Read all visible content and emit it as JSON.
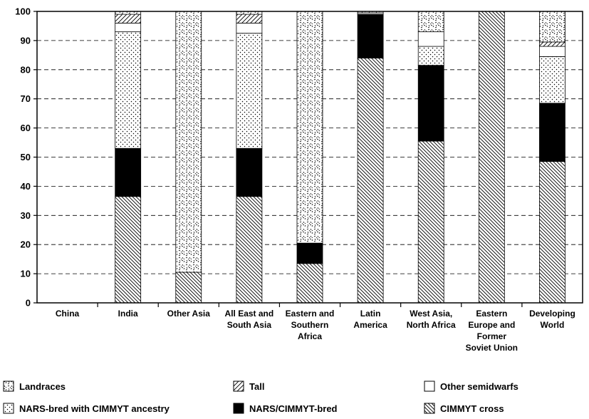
{
  "chart_data": {
    "type": "bar",
    "stacked": true,
    "title": "",
    "xlabel": "",
    "ylabel": "",
    "ylim": [
      0,
      100
    ],
    "yticks": [
      0,
      10,
      20,
      30,
      40,
      50,
      60,
      70,
      80,
      90,
      100
    ],
    "grid": "horizontal dashed",
    "legend_position": "bottom",
    "categories": [
      [
        "China"
      ],
      [
        "India"
      ],
      [
        "Other Asia"
      ],
      [
        "All East and",
        "South Asia"
      ],
      [
        "Eastern and",
        "Southern",
        "Africa"
      ],
      [
        "Latin",
        "America"
      ],
      [
        "West Asia,",
        "North Africa"
      ],
      [
        "Eastern",
        "Europe and",
        "Former",
        "Soviet Union"
      ],
      [
        "Developing",
        "World"
      ]
    ],
    "series": [
      {
        "name": "CIMMYT cross",
        "pattern": "back-diagonal-dense",
        "values": [
          0,
          36.5,
          10.5,
          36.5,
          13.5,
          84,
          55.5,
          100,
          48.5
        ]
      },
      {
        "name": "NARS/CIMMYT-bred",
        "pattern": "solid-black",
        "values": [
          0,
          16.5,
          0,
          16.5,
          7,
          15,
          26,
          0,
          20
        ]
      },
      {
        "name": "NARS-bred with CIMMYT ancestry",
        "pattern": "dots",
        "values": [
          0,
          40,
          0,
          39.5,
          0,
          0,
          6.5,
          0,
          16
        ]
      },
      {
        "name": "Other semidwarfs",
        "pattern": "white",
        "values": [
          0,
          3,
          0,
          3.5,
          0,
          0.5,
          5,
          0,
          3.5
        ]
      },
      {
        "name": "Tall",
        "pattern": "forward-diagonal",
        "values": [
          0,
          3,
          0,
          3,
          0,
          0,
          0,
          0,
          1.5
        ]
      },
      {
        "name": "Landraces",
        "pattern": "speckle",
        "values": [
          0,
          1,
          89.5,
          1,
          79.5,
          0.5,
          7,
          0,
          10.5
        ]
      }
    ],
    "legend": [
      [
        "Landraces",
        "Tall",
        "Other semidwarfs"
      ],
      [
        "NARS-bred with CIMMYT ancestry",
        "NARS/CIMMYT-bred",
        "CIMMYT cross"
      ]
    ]
  }
}
